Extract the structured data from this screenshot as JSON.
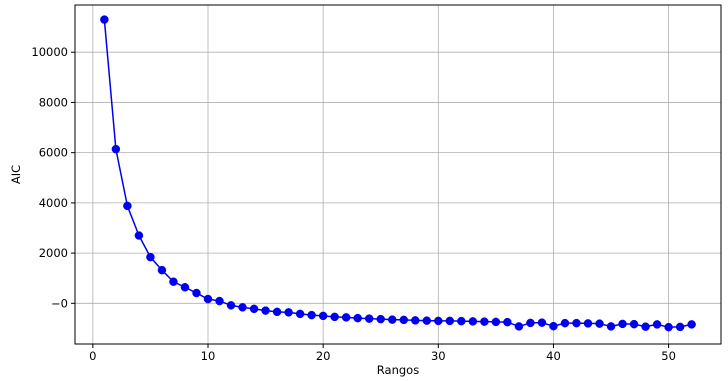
{
  "chart_data": {
    "type": "line",
    "title": "",
    "xlabel": "Rangos",
    "ylabel": "AIC",
    "xlim": [
      -1.55,
      54.55
    ],
    "ylim": [
      -1620,
      11880
    ],
    "xticks": [
      0,
      10,
      20,
      30,
      40,
      50
    ],
    "yticks": [
      0,
      2000,
      4000,
      6000,
      8000,
      10000
    ],
    "xtick_labels": [
      "0",
      "10",
      "20",
      "30",
      "40",
      "50"
    ],
    "ytick_labels": [
      "−0",
      "2000",
      "4000",
      "6000",
      "8000",
      "10000"
    ],
    "grid": true,
    "legend": "none",
    "series": [
      {
        "color": "#0000ee",
        "marker": "circle",
        "x": [
          1,
          2,
          3,
          4,
          5,
          6,
          7,
          8,
          9,
          10,
          11,
          12,
          13,
          14,
          15,
          16,
          17,
          18,
          19,
          20,
          21,
          22,
          23,
          24,
          25,
          26,
          27,
          28,
          29,
          30,
          31,
          32,
          33,
          34,
          35,
          36,
          37,
          38,
          39,
          40,
          41,
          42,
          43,
          44,
          45,
          46,
          47,
          48,
          49,
          50,
          51,
          52
        ],
        "y": [
          11300,
          6140,
          3880,
          2700,
          1840,
          1320,
          860,
          640,
          410,
          170,
          90,
          -80,
          -160,
          -220,
          -290,
          -340,
          -360,
          -420,
          -470,
          -500,
          -540,
          -560,
          -590,
          -610,
          -630,
          -650,
          -660,
          -680,
          -690,
          -700,
          -700,
          -710,
          -720,
          -730,
          -740,
          -750,
          -920,
          -780,
          -770,
          -910,
          -790,
          -790,
          -800,
          -810,
          -920,
          -820,
          -830,
          -930,
          -840,
          -950,
          -940,
          -840
        ]
      }
    ],
    "colors": {
      "line": "#0000ee",
      "grid": "#b0b0b0",
      "axis": "#000000",
      "background": "#ffffff"
    }
  }
}
